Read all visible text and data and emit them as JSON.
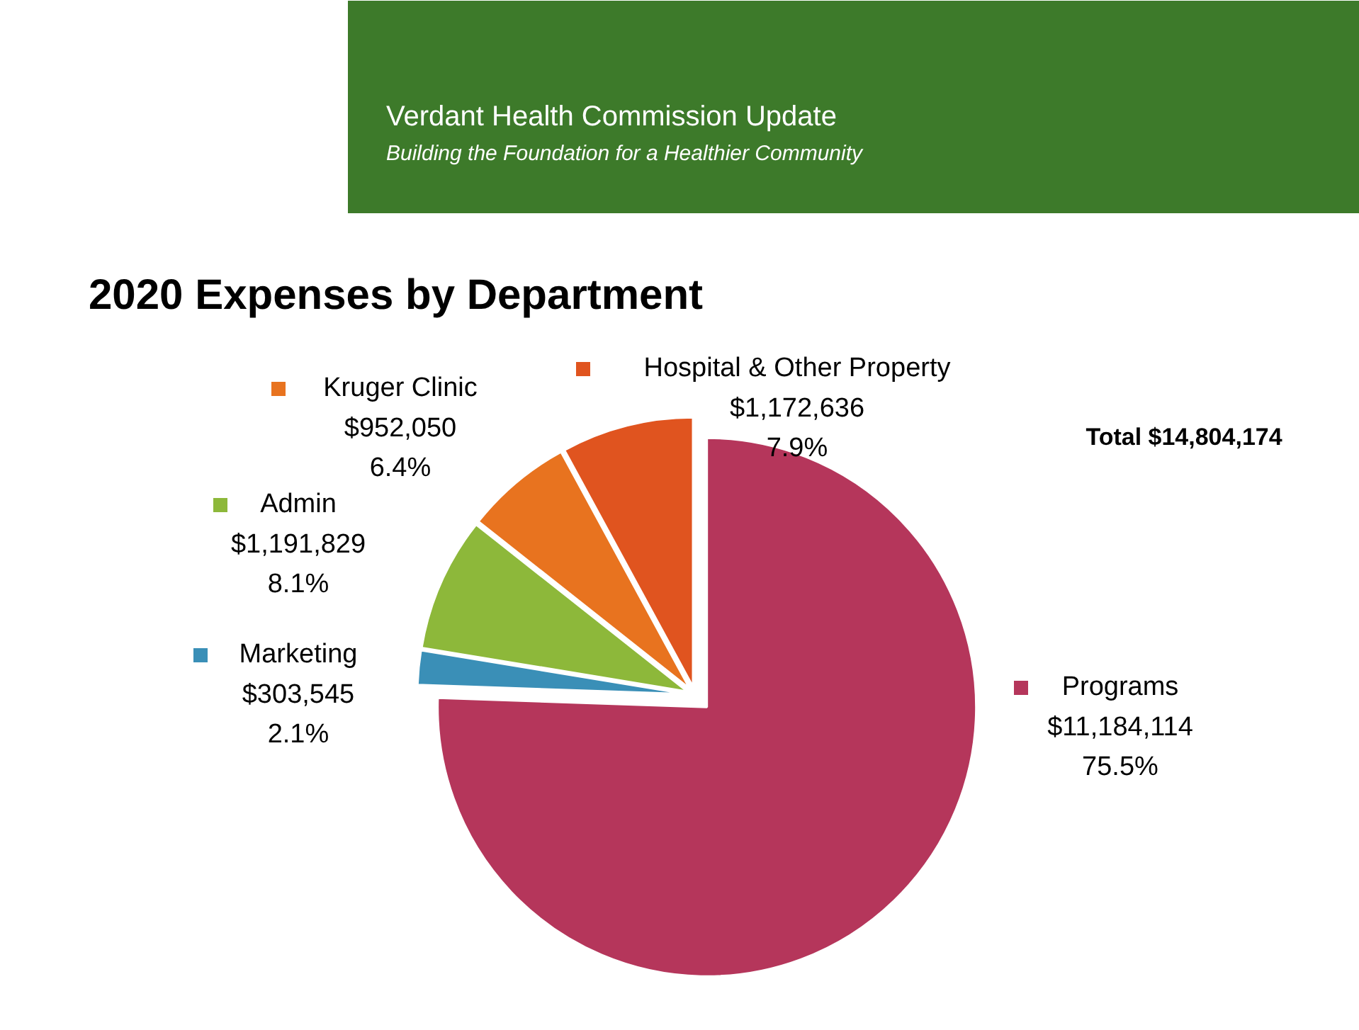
{
  "chart_data": {
    "type": "pie",
    "title": "2020 Expenses by Department",
    "categories": [
      "Programs",
      "Marketing",
      "Admin",
      "Kruger Clinic",
      "Hospital & Other Property"
    ],
    "values": [
      11184114,
      303545,
      1191829,
      952050,
      1172636
    ],
    "colors": [
      "#b5365b",
      "#3a8fb7",
      "#8db83a",
      "#e8731f",
      "#e0541f"
    ],
    "value_labels": [
      "$11,184,114\n75.5%",
      "$303,545\n2.1%",
      "$1,191,829\n8.1%",
      "$952,050\n6.4%",
      "$1,172,636\n7.9%"
    ],
    "annotations": [
      "Verdant Health Commission Update",
      "Building the Foundation for a Healthier Community",
      "Total $14,804,174"
    ],
    "legend": "top left"
  }
}
